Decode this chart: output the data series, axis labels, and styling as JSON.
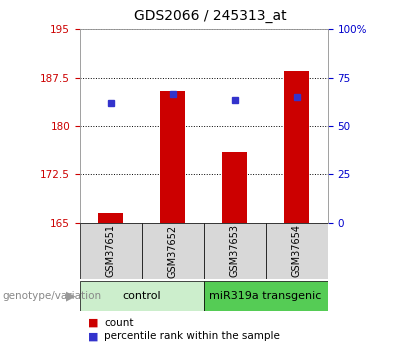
{
  "title": "GDS2066 / 245313_at",
  "samples": [
    "GSM37651",
    "GSM37652",
    "GSM37653",
    "GSM37654"
  ],
  "bar_values": [
    166.5,
    185.5,
    176.0,
    188.5
  ],
  "percentile_values": [
    183.5,
    185.0,
    184.0,
    184.5
  ],
  "bar_color": "#cc0000",
  "dot_color": "#3333cc",
  "ylim_left": [
    165,
    195
  ],
  "ylim_right": [
    0,
    100
  ],
  "yticks_left": [
    165,
    172.5,
    180,
    187.5,
    195
  ],
  "ytick_labels_left": [
    "165",
    "172.5",
    "180",
    "187.5",
    "195"
  ],
  "yticks_right": [
    0,
    25,
    50,
    75,
    100
  ],
  "ytick_labels_right": [
    "0",
    "25",
    "50",
    "75",
    "100%"
  ],
  "groups": [
    {
      "label": "control",
      "indices": [
        0,
        1
      ],
      "color": "#cceecc"
    },
    {
      "label": "miR319a transgenic",
      "indices": [
        2,
        3
      ],
      "color": "#55cc55"
    }
  ],
  "group_label_prefix": "genotype/variation",
  "legend_count_label": "count",
  "legend_pct_label": "percentile rank within the sample",
  "background_color": "#ffffff",
  "plot_bg": "#ffffff",
  "tick_color_left": "#cc0000",
  "tick_color_right": "#0000cc",
  "figsize": [
    4.2,
    3.45
  ],
  "dpi": 100
}
